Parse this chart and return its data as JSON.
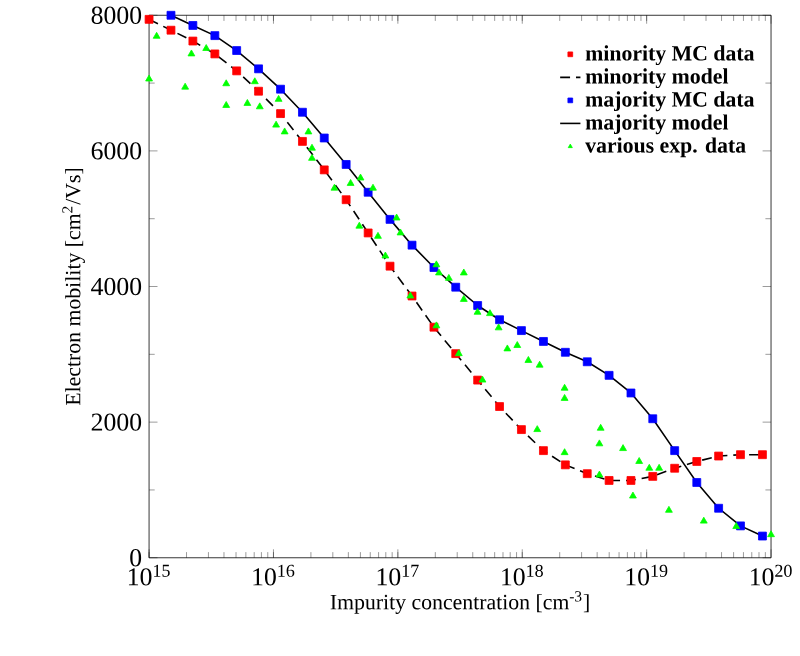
{
  "chart_data": {
    "type": "line",
    "xlabel": "Impurity concentration [cm$^{-3}$]",
    "ylabel": "Electron mobility [cm$^{2}$/Vs]",
    "log": "x",
    "xlim": [
      1000000000000000.0,
      1e+20
    ],
    "ylim": [
      0,
      8000
    ],
    "xticks": [
      {
        "value": 1000000000000000.0,
        "label": "10$^{15}$"
      },
      {
        "value": 1e+16,
        "label": "10$^{16}$"
      },
      {
        "value": 1e+17,
        "label": "10$^{17}$"
      },
      {
        "value": 1e+18,
        "label": "10$^{18}$"
      },
      {
        "value": 1e+19,
        "label": "10$^{19}$"
      },
      {
        "value": 1e+20,
        "label": "10$^{20}$"
      }
    ],
    "yticks": [
      0,
      2000,
      4000,
      6000,
      8000
    ],
    "legend": "top right",
    "series": [
      {
        "name": "minority MC data",
        "type": "scatter",
        "marker": "square",
        "color": "#ff0000",
        "x": [
          1000000000000000.0,
          1500000000000000.0,
          2250000000000000.0,
          3380000000000000.0,
          5060000000000000.0,
          7590000000000000.0,
          1.14e+16,
          1.71e+16,
          2.56e+16,
          3.84e+16,
          5.77e+16,
          8.65e+16,
          1.3e+17,
          1.95e+17,
          2.92e+17,
          4.38e+17,
          6.57e+17,
          9.85e+17,
          1.48e+18,
          2.22e+18,
          3.33e+18,
          4.99e+18,
          7.48e+18,
          1.12e+19,
          1.68e+19,
          2.53e+19,
          3.79e+19,
          5.68e+19,
          8.53e+19
        ],
        "values": [
          7940,
          7780,
          7620,
          7430,
          7180,
          6880,
          6550,
          6140,
          5720,
          5280,
          4790,
          4300,
          3860,
          3400,
          3010,
          2620,
          2230,
          1890,
          1580,
          1370,
          1240,
          1140,
          1140,
          1200,
          1320,
          1420,
          1500,
          1520,
          1520
        ]
      },
      {
        "name": "minority model",
        "line_style": "dashed",
        "color": "#000000",
        "x": [
          1000000000000000.0,
          1500000000000000.0,
          2250000000000000.0,
          3380000000000000.0,
          5060000000000000.0,
          7590000000000000.0,
          1.14e+16,
          1.71e+16,
          2.56e+16,
          3.84e+16,
          5.77e+16,
          8.65e+16,
          1.3e+17,
          1.95e+17,
          2.92e+17,
          4.38e+17,
          6.57e+17,
          9.85e+17,
          1.48e+18,
          2.22e+18,
          3.33e+18,
          4.99e+18,
          7.48e+18,
          1.12e+19,
          1.68e+19,
          2.53e+19,
          3.79e+19,
          5.68e+19,
          8.53e+19
        ],
        "values": [
          7940,
          7780,
          7620,
          7430,
          7180,
          6880,
          6550,
          6140,
          5720,
          5280,
          4790,
          4300,
          3860,
          3400,
          3010,
          2620,
          2230,
          1890,
          1580,
          1370,
          1240,
          1140,
          1140,
          1200,
          1320,
          1420,
          1500,
          1520,
          1520
        ]
      },
      {
        "name": "majority MC data",
        "type": "scatter",
        "marker": "square",
        "color": "#0000ff",
        "x": [
          1500000000000000.0,
          2250000000000000.0,
          3380000000000000.0,
          5060000000000000.0,
          7590000000000000.0,
          1.14e+16,
          1.71e+16,
          2.56e+16,
          3.84e+16,
          5.77e+16,
          8.65e+16,
          1.3e+17,
          1.95e+17,
          2.92e+17,
          4.38e+17,
          6.57e+17,
          9.85e+17,
          1.48e+18,
          2.22e+18,
          3.33e+18,
          4.99e+18,
          7.48e+18,
          1.12e+19,
          1.68e+19,
          2.53e+19,
          3.79e+19,
          5.68e+19,
          8.53e+19
        ],
        "values": [
          8000,
          7850,
          7700,
          7480,
          7210,
          6910,
          6570,
          6190,
          5800,
          5390,
          4990,
          4610,
          4280,
          3990,
          3720,
          3510,
          3350,
          3190,
          3030,
          2890,
          2690,
          2430,
          2050,
          1580,
          1110,
          730,
          470,
          320
        ]
      },
      {
        "name": "majority model",
        "line_style": "solid",
        "color": "#000000",
        "x": [
          1500000000000000.0,
          2250000000000000.0,
          3380000000000000.0,
          5060000000000000.0,
          7590000000000000.0,
          1.14e+16,
          1.71e+16,
          2.56e+16,
          3.84e+16,
          5.77e+16,
          8.65e+16,
          1.3e+17,
          1.95e+17,
          2.92e+17,
          4.38e+17,
          6.57e+17,
          9.85e+17,
          1.48e+18,
          2.22e+18,
          3.33e+18,
          4.99e+18,
          7.48e+18,
          1.12e+19,
          1.68e+19,
          2.53e+19,
          3.79e+19,
          5.68e+19,
          8.53e+19
        ],
        "values": [
          8000,
          7850,
          7700,
          7480,
          7210,
          6910,
          6570,
          6190,
          5800,
          5390,
          4990,
          4610,
          4280,
          3990,
          3720,
          3510,
          3350,
          3190,
          3030,
          2890,
          2690,
          2430,
          2050,
          1580,
          1110,
          730,
          470,
          320
        ]
      },
      {
        "name": "various exp. data",
        "type": "scatter",
        "marker": "triangle",
        "color": "#00ff00",
        "x": [
          1000000000000000.0,
          1150000000000000.0,
          1950000000000000.0,
          2190000000000000.0,
          2880000000000000.0,
          4170000000000000.0,
          4170000000000000.0,
          6170000000000000.0,
          7080000000000000.0,
          7760000000000000.0,
          1.05e+16,
          1.1e+16,
          1.23e+16,
          1.91e+16,
          2.04e+16,
          2.04e+16,
          3.09e+16,
          4.17e+16,
          4.9e+16,
          5.01e+16,
          6.31e+16,
          6.92e+16,
          7.94e+16,
          9.77e+16,
          1.05e+17,
          1.26e+17,
          2.04e+17,
          2.04e+17,
          2.14e+17,
          2.57e+17,
          3.09e+17,
          3.39e+17,
          3.39e+17,
          4.37e+17,
          4.79e+17,
          5.5e+17,
          6.46e+17,
          7.59e+17,
          9.12e+17,
          1.12e+18,
          1.32e+18,
          1.38e+18,
          2.19e+18,
          2.19e+18,
          2.19e+18,
          4.17e+18,
          4.17e+18,
          4.27e+18,
          6.46e+18,
          7.76e+18,
          8.71e+18,
          1.05e+19,
          1.26e+19,
          1.51e+19,
          2.88e+19,
          5.25e+19,
          1e+20
        ],
        "values": [
          7060,
          7690,
          6940,
          7430,
          7510,
          6990,
          6670,
          6700,
          7020,
          6650,
          6380,
          6760,
          6280,
          6280,
          6040,
          5890,
          5450,
          5520,
          4890,
          5600,
          5450,
          4740,
          4450,
          5010,
          4790,
          3860,
          4320,
          3420,
          4200,
          4120,
          3010,
          4200,
          3810,
          3620,
          2620,
          3600,
          3390,
          3080,
          3130,
          2910,
          1890,
          2840,
          2500,
          2350,
          1550,
          1220,
          1680,
          1910,
          1610,
          910,
          1420,
          1320,
          1320,
          700,
          540,
          460,
          340
        ]
      }
    ]
  }
}
